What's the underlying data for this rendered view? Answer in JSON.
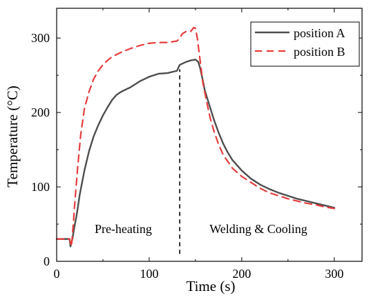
{
  "chart_data": {
    "type": "line",
    "title": "",
    "xlabel": "Time (s)",
    "ylabel": "Temperature (°C)",
    "xlim": [
      0,
      330
    ],
    "ylim": [
      0,
      340
    ],
    "xticks": [
      0,
      100,
      200,
      300
    ],
    "yticks": [
      0,
      100,
      200,
      300
    ],
    "grid": false,
    "legend_position": "top-right",
    "annotations": [
      {
        "id": "preheating",
        "text": "Pre-heating",
        "x": 72,
        "y": 38
      },
      {
        "id": "welding-cooling",
        "text": "Welding & Cooling",
        "x": 218,
        "y": 38
      }
    ],
    "marker_line": {
      "x": 133,
      "y1": 10,
      "y2": 258,
      "style": "dashed",
      "color": "#000000"
    },
    "series": [
      {
        "name": "position A",
        "color": "#4d4d4d",
        "style": "solid",
        "x": [
          0,
          14,
          15,
          17,
          19,
          22,
          25,
          30,
          35,
          40,
          45,
          50,
          55,
          60,
          65,
          70,
          80,
          90,
          100,
          110,
          120,
          130,
          133,
          140,
          145,
          150,
          153,
          155,
          158,
          160,
          165,
          170,
          175,
          180,
          185,
          190,
          200,
          210,
          220,
          230,
          240,
          250,
          260,
          270,
          280,
          290,
          300
        ],
        "y": [
          30,
          30,
          20,
          30,
          45,
          65,
          90,
          122,
          148,
          168,
          183,
          196,
          207,
          217,
          224,
          228,
          234,
          242,
          248,
          252,
          253,
          256,
          264,
          268,
          270,
          271,
          268,
          260,
          243,
          230,
          210,
          190,
          173,
          158,
          146,
          136,
          122,
          111,
          103,
          97,
          92,
          88,
          84,
          81,
          78,
          75,
          72
        ]
      },
      {
        "name": "position B",
        "color": "#e63b3b",
        "style": "dashed",
        "x": [
          0,
          14,
          16,
          18,
          20,
          23,
          26,
          30,
          35,
          40,
          45,
          50,
          55,
          60,
          70,
          80,
          90,
          100,
          110,
          120,
          130,
          133,
          136,
          140,
          145,
          148,
          150,
          152,
          155,
          158,
          162,
          166,
          170,
          175,
          180,
          190,
          200,
          210,
          220,
          230,
          240,
          250,
          260,
          270,
          280,
          290,
          300
        ],
        "y": [
          30,
          30,
          20,
          50,
          85,
          130,
          170,
          205,
          228,
          245,
          256,
          264,
          270,
          275,
          281,
          286,
          290,
          293,
          294,
          294,
          296,
          300,
          306,
          309,
          309,
          314,
          313,
          300,
          270,
          240,
          215,
          192,
          175,
          157,
          143,
          125,
          114,
          106,
          98,
          92,
          88,
          84,
          81,
          78,
          76,
          73,
          71
        ]
      }
    ]
  }
}
